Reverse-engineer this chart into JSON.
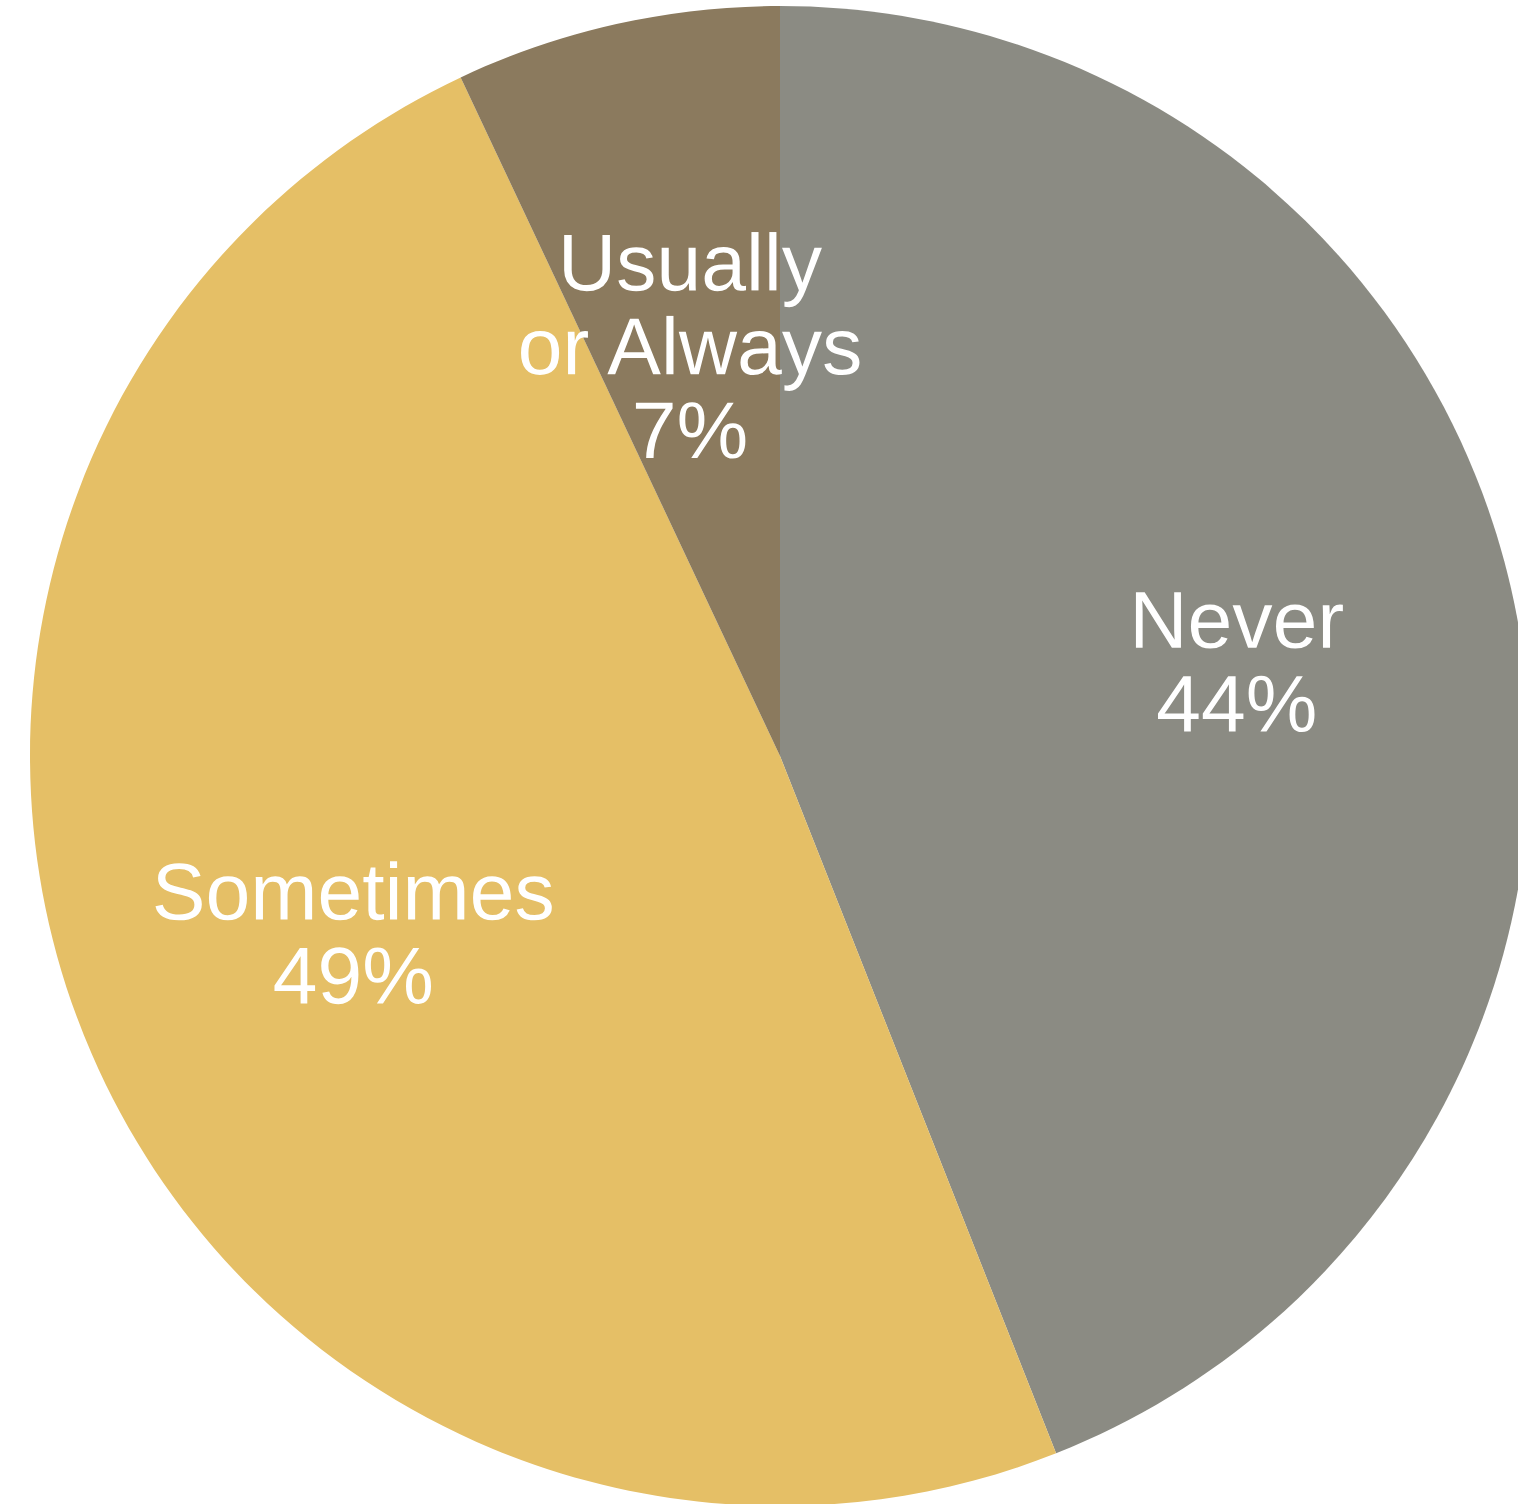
{
  "chart_data": {
    "type": "pie",
    "categories": [
      "Never",
      "Sometimes",
      "Usually or Always"
    ],
    "values": [
      44,
      49,
      7
    ],
    "colors": [
      "#8b8b83",
      "#e5bf66",
      "#8b7a5e"
    ],
    "value_labels": [
      "44%",
      "49%",
      "7%"
    ]
  }
}
